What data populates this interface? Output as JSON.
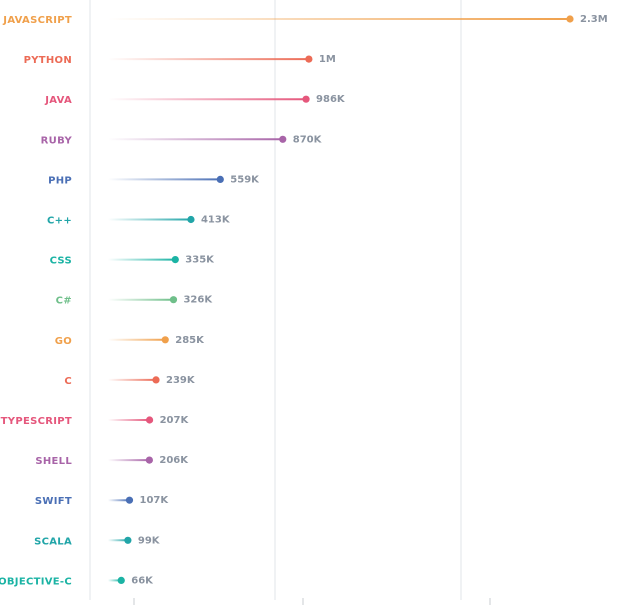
{
  "chart_data": {
    "type": "bar",
    "title": "",
    "xlabel": "",
    "ylabel": "",
    "xlim": [
      0,
      2500000
    ],
    "grid": true,
    "categories": [
      "JAVASCRIPT",
      "PYTHON",
      "JAVA",
      "RUBY",
      "PHP",
      "C++",
      "CSS",
      "C#",
      "GO",
      "C",
      "TYPESCRIPT",
      "SHELL",
      "SWIFT",
      "SCALA",
      "OBJECTIVE-C"
    ],
    "values": [
      2300000,
      1000000,
      986000,
      870000,
      559000,
      413000,
      335000,
      326000,
      285000,
      239000,
      207000,
      206000,
      107000,
      99000,
      66000
    ],
    "value_labels": [
      "2.3M",
      "1M",
      "986K",
      "870K",
      "559K",
      "413K",
      "335K",
      "326K",
      "285K",
      "239K",
      "207K",
      "206K",
      "107K",
      "99K",
      "66K"
    ],
    "colors": [
      "#f0a04b",
      "#ec6b56",
      "#e5577c",
      "#a864a8",
      "#4a6fb5",
      "#21a5a8",
      "#1bb3a4",
      "#6fbf8a",
      "#f0a04b",
      "#ec6b56",
      "#e5577c",
      "#a864a8",
      "#4a6fb5",
      "#21a5a8",
      "#1bb3a4"
    ]
  }
}
